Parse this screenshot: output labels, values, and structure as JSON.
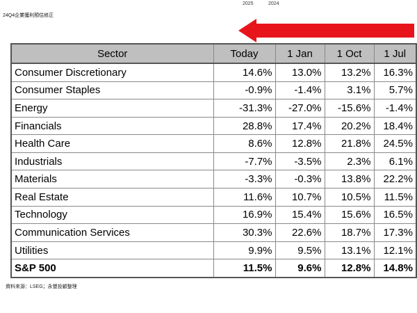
{
  "header": {
    "year_left": "2025",
    "year_right": "2024",
    "doc_title": "24Q4企業獲利預估修正"
  },
  "colors": {
    "arrow": "#e8141c",
    "header_bg": "#bfbfbf"
  },
  "icons": {
    "arrow": "arrow-left-icon"
  },
  "table": {
    "columns": [
      "Sector",
      "Today",
      "1 Jan",
      "1 Oct",
      "1 Jul"
    ],
    "rows": [
      [
        "Consumer Discretionary",
        "14.6%",
        "13.0%",
        "13.2%",
        "16.3%"
      ],
      [
        "Consumer Staples",
        "-0.9%",
        "-1.4%",
        "3.1%",
        "5.7%"
      ],
      [
        "Energy",
        "-31.3%",
        "-27.0%",
        "-15.6%",
        "-1.4%"
      ],
      [
        "Financials",
        "28.8%",
        "17.4%",
        "20.2%",
        "18.4%"
      ],
      [
        "Health Care",
        "8.6%",
        "12.8%",
        "21.8%",
        "24.5%"
      ],
      [
        "Industrials",
        "-7.7%",
        "-3.5%",
        "2.3%",
        "6.1%"
      ],
      [
        "Materials",
        "-3.3%",
        "-0.3%",
        "13.8%",
        "22.2%"
      ],
      [
        "Real Estate",
        "11.6%",
        "10.7%",
        "10.5%",
        "11.5%"
      ],
      [
        "Technology",
        "16.9%",
        "15.4%",
        "15.6%",
        "16.5%"
      ],
      [
        "Communication Services",
        "30.3%",
        "22.6%",
        "18.7%",
        "17.3%"
      ],
      [
        "Utilities",
        "9.9%",
        "9.5%",
        "13.1%",
        "12.1%"
      ],
      [
        "S&P 500",
        "11.5%",
        "9.6%",
        "12.8%",
        "14.8%"
      ]
    ]
  },
  "footer": {
    "source": "資料來源：LSEG；永豐投顧整理"
  }
}
